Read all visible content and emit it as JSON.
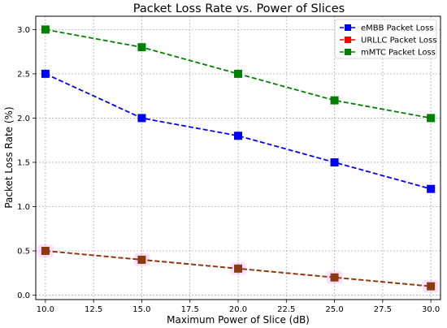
{
  "chart_data": {
    "type": "line",
    "title": "Packet Loss Rate vs. Power of Slices",
    "xlabel": "Maximum Power of Slice (dB)",
    "ylabel": "Packet Loss Rate (%)",
    "x": [
      10,
      15,
      20,
      25,
      30
    ],
    "xlim": [
      9.5,
      30.5
    ],
    "ylim": [
      -0.05,
      3.15
    ],
    "xticks": [
      "10.0",
      "12.5",
      "15.0",
      "17.5",
      "20.0",
      "22.5",
      "25.0",
      "27.5",
      "30.0"
    ],
    "yticks": [
      "0.0",
      "0.5",
      "1.0",
      "1.5",
      "2.0",
      "2.5",
      "3.0"
    ],
    "grid": true,
    "legend_position": "top-right",
    "series": [
      {
        "name": "eMBB Packet Loss",
        "color": "#0000ff",
        "marker": "square",
        "linestyle": "dashed",
        "values": [
          2.5,
          2.0,
          1.8,
          1.5,
          1.2
        ]
      },
      {
        "name": "URLLC Packet Loss",
        "color": "#ff0000",
        "marker": "square",
        "linestyle": "dashed",
        "values": [
          0.5,
          0.4,
          0.3,
          0.2,
          0.1
        ]
      },
      {
        "name": "mMTC Packet Loss",
        "color": "#008000",
        "marker": "square",
        "linestyle": "dashed",
        "values": [
          3.0,
          2.8,
          2.5,
          2.2,
          2.0
        ]
      }
    ],
    "overlay": {
      "note_color_line": "#8b3a0f",
      "highlight_color": "#ff00ff"
    }
  }
}
